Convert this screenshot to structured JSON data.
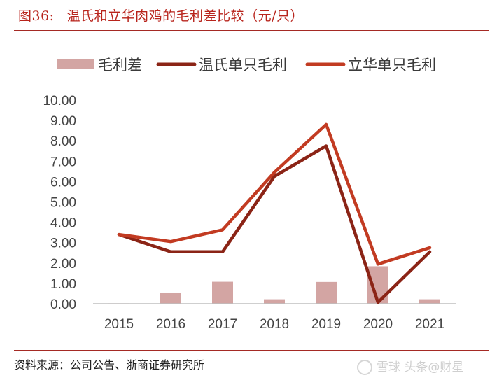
{
  "header": {
    "figure_label": "图36:",
    "title": "温氏和立华肉鸡的毛利差比较（元/只）"
  },
  "footer": {
    "source": "资料来源：公司公告、浙商证券研究所",
    "watermark": "雪球 头条@财星"
  },
  "colors": {
    "title": "#b8241c",
    "rule": "#a52a24",
    "bar": "#d3a5a3",
    "wens": "#8b2416",
    "lihua": "#c23b22"
  },
  "chart_data": {
    "type": "bar+line",
    "categories": [
      "2015",
      "2016",
      "2017",
      "2018",
      "2019",
      "2020",
      "2021"
    ],
    "series": [
      {
        "name": "毛利差",
        "type": "bar",
        "color": "#d3a5a3",
        "values": [
          0.02,
          0.55,
          1.08,
          0.22,
          1.07,
          1.84,
          0.22
        ]
      },
      {
        "name": "温氏单只毛利",
        "type": "line",
        "color": "#8b2416",
        "values": [
          3.4,
          2.55,
          2.55,
          6.25,
          7.75,
          0.07,
          2.55
        ]
      },
      {
        "name": "立华单只毛利",
        "type": "line",
        "color": "#c23b22",
        "values": [
          3.4,
          3.05,
          3.63,
          6.45,
          8.8,
          1.95,
          2.75
        ]
      }
    ],
    "y_ticks": [
      "0.00",
      "1.00",
      "2.00",
      "3.00",
      "4.00",
      "5.00",
      "6.00",
      "7.00",
      "8.00",
      "9.00",
      "10.00"
    ],
    "ylim": [
      0,
      10
    ],
    "grid": false,
    "legend_position": "top"
  }
}
